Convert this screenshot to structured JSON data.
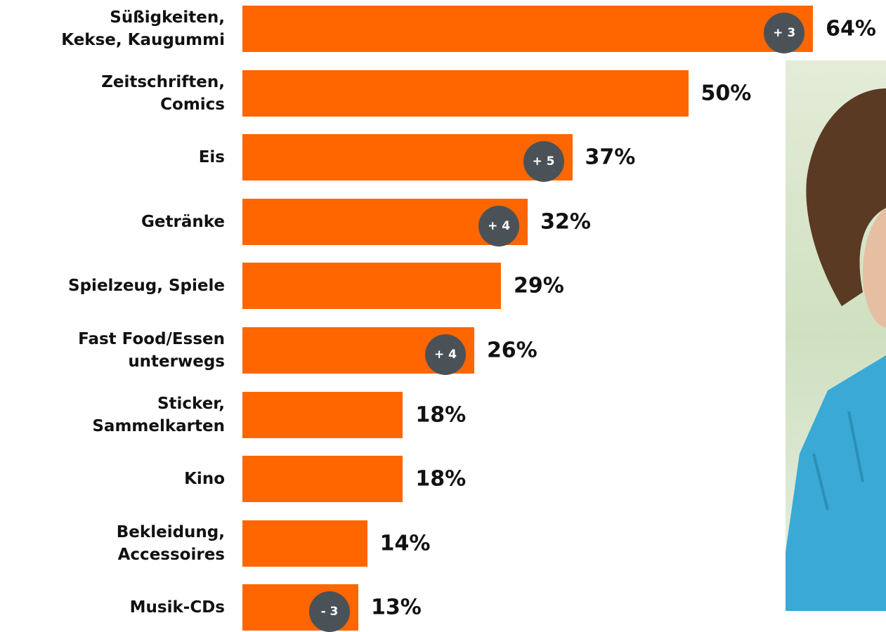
{
  "chart_data": {
    "type": "bar",
    "orientation": "horizontal",
    "color": "#ff6600",
    "categories": [
      "Süßigkeiten,\nKekse, Kaugummi",
      "Zeitschriften,\nComics",
      "Eis",
      "Getränke",
      "Spielzeug, Spiele",
      "Fast Food/Essen\nunterwegs",
      "Sticker,\nSammelkarten",
      "Kino",
      "Bekleidung,\nAccessoires",
      "Musik-CDs"
    ],
    "values": [
      64,
      50,
      37,
      32,
      29,
      26,
      18,
      18,
      14,
      13
    ],
    "value_labels": [
      "64%",
      "50%",
      "37%",
      "32%",
      "29%",
      "26%",
      "18%",
      "18%",
      "14%",
      "13%"
    ],
    "changes": [
      3,
      null,
      5,
      4,
      null,
      4,
      null,
      null,
      null,
      -3
    ],
    "change_labels": [
      "+ 3",
      null,
      "+ 5",
      "+ 4",
      null,
      "+ 4",
      null,
      null,
      null,
      "- 3"
    ]
  }
}
